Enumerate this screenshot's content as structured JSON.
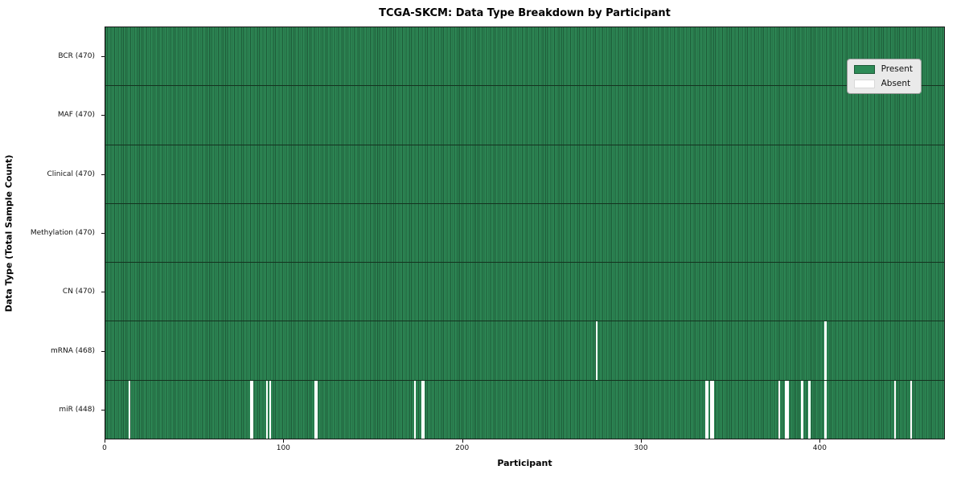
{
  "chart_data": {
    "type": "heatmap",
    "title": "TCGA-SKCM: Data Type Breakdown by Participant",
    "xlabel": "Participant",
    "ylabel": "Data Type (Total Sample Count)",
    "n_participants": 470,
    "x_ticks": [
      0,
      100,
      200,
      300,
      400
    ],
    "x_range": [
      0,
      470
    ],
    "grid": "off",
    "legend": {
      "position": "upper right",
      "entries": [
        {
          "label": "Present",
          "color": "#2e8b57"
        },
        {
          "label": "Absent",
          "color": "#ffffff"
        }
      ]
    },
    "rows": [
      {
        "label": "BCR (470)",
        "data_type": "BCR",
        "present_count": 470,
        "absent_participants": []
      },
      {
        "label": "MAF (470)",
        "data_type": "MAF",
        "present_count": 470,
        "absent_participants": []
      },
      {
        "label": "Clinical (470)",
        "data_type": "Clinical",
        "present_count": 470,
        "absent_participants": []
      },
      {
        "label": "Methylation (470)",
        "data_type": "Methylation",
        "present_count": 470,
        "absent_participants": []
      },
      {
        "label": "CN (470)",
        "data_type": "CN",
        "present_count": 470,
        "absent_participants": []
      },
      {
        "label": "mRNA (468)",
        "data_type": "mRNA",
        "present_count": 468,
        "absent_participants": [
          275,
          403
        ]
      },
      {
        "label": "miR (448)",
        "data_type": "miR",
        "present_count": 448,
        "absent_participants": [
          13,
          81,
          82,
          90,
          92,
          117,
          118,
          173,
          177,
          178,
          336,
          337,
          339,
          340,
          377,
          381,
          382,
          390,
          394,
          403,
          442,
          451
        ]
      }
    ],
    "colors": {
      "present": "#2e8b57",
      "bar_edge": "#1d5937",
      "absent": "#ffffff",
      "row_divider": "#14321f",
      "plot_border": "#1a1a1a",
      "legend_bg": "#eaeaea",
      "legend_border": "#9a9a9a"
    }
  }
}
